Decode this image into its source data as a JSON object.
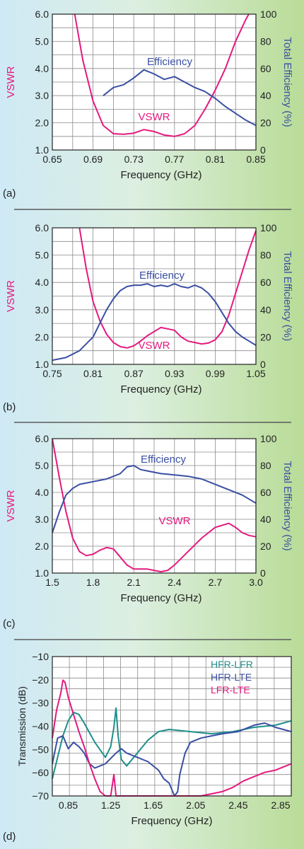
{
  "colors": {
    "vswr": "#e5197e",
    "efficiency": "#3a4fa3",
    "teal": "#1e8f8a",
    "grid": "#8a8a8a",
    "separator": "#5a5a5a"
  },
  "chart_data": [
    {
      "panel": "(a)",
      "type": "line",
      "xlabel": "Frequency (GHz)",
      "ylabel": "VSWR",
      "y2label": "Total Efficiency (%)",
      "xlim": [
        0.65,
        0.85
      ],
      "ylim": [
        1.0,
        6.0
      ],
      "y2lim": [
        0,
        100
      ],
      "xticks": [
        "0.65",
        "0.69",
        "0.73",
        "0.77",
        "0.81",
        "0.85"
      ],
      "yticks": [
        "1.0",
        "2.0",
        "3.0",
        "4.0",
        "5.0",
        "6.0"
      ],
      "y2ticks": [
        "0",
        "20",
        "40",
        "60",
        "80",
        "100"
      ],
      "grid": true,
      "series": [
        {
          "name": "VSWR",
          "axis": "left",
          "color": "#e5197e",
          "x": [
            0.672,
            0.68,
            0.69,
            0.7,
            0.71,
            0.72,
            0.73,
            0.74,
            0.75,
            0.76,
            0.77,
            0.78,
            0.79,
            0.8,
            0.81,
            0.82,
            0.83,
            0.84,
            0.843
          ],
          "y": [
            6.0,
            4.3,
            2.8,
            1.9,
            1.6,
            1.58,
            1.62,
            1.75,
            1.68,
            1.55,
            1.5,
            1.6,
            1.9,
            2.5,
            3.2,
            4.0,
            5.0,
            5.8,
            6.0
          ]
        },
        {
          "name": "Efficiency",
          "axis": "right",
          "color": "#3a4fa3",
          "x": [
            0.7,
            0.71,
            0.72,
            0.73,
            0.74,
            0.75,
            0.76,
            0.77,
            0.78,
            0.79,
            0.8,
            0.81,
            0.82,
            0.83,
            0.84,
            0.85
          ],
          "y": [
            40,
            46,
            48,
            53,
            59,
            56,
            52,
            54,
            50,
            46,
            43,
            38,
            32,
            27,
            22,
            18
          ]
        }
      ]
    },
    {
      "panel": "(b)",
      "type": "line",
      "xlabel": "Frequency (GHz)",
      "ylabel": "VSWR",
      "y2label": "Total Efficiency (%)",
      "xlim": [
        0.75,
        1.05
      ],
      "ylim": [
        1.0,
        6.0
      ],
      "y2lim": [
        0,
        100
      ],
      "xticks": [
        "0.75",
        "0.81",
        "0.87",
        "0.93",
        "0.99",
        "1.05"
      ],
      "yticks": [
        "1.0",
        "2.0",
        "3.0",
        "4.0",
        "5.0",
        "6.0"
      ],
      "y2ticks": [
        "0",
        "20",
        "40",
        "60",
        "80",
        "100"
      ],
      "grid": true,
      "series": [
        {
          "name": "VSWR",
          "axis": "left",
          "color": "#e5197e",
          "x": [
            0.79,
            0.8,
            0.81,
            0.82,
            0.83,
            0.84,
            0.85,
            0.86,
            0.87,
            0.88,
            0.89,
            0.9,
            0.91,
            0.92,
            0.93,
            0.94,
            0.95,
            0.96,
            0.97,
            0.98,
            0.99,
            1.0,
            1.01,
            1.02,
            1.03,
            1.04,
            1.05
          ],
          "y": [
            6.0,
            4.5,
            3.3,
            2.6,
            2.1,
            1.8,
            1.65,
            1.6,
            1.68,
            1.85,
            2.05,
            2.2,
            2.35,
            2.3,
            2.25,
            2.0,
            1.85,
            1.8,
            1.75,
            1.78,
            1.9,
            2.2,
            2.8,
            3.6,
            4.4,
            5.2,
            5.9
          ]
        },
        {
          "name": "Efficiency",
          "axis": "right",
          "color": "#3a4fa3",
          "x": [
            0.75,
            0.77,
            0.79,
            0.81,
            0.82,
            0.83,
            0.84,
            0.85,
            0.86,
            0.87,
            0.88,
            0.89,
            0.9,
            0.91,
            0.92,
            0.93,
            0.94,
            0.95,
            0.96,
            0.97,
            0.98,
            0.99,
            1.0,
            1.01,
            1.02,
            1.03,
            1.04,
            1.05
          ],
          "y": [
            3,
            5,
            10,
            20,
            30,
            40,
            48,
            54,
            57,
            58,
            58,
            59,
            57,
            58,
            57,
            59,
            57,
            56,
            58,
            56,
            52,
            46,
            38,
            30,
            24,
            20,
            17,
            14
          ]
        }
      ]
    },
    {
      "panel": "(c)",
      "type": "line",
      "xlabel": "Frequency (GHz)",
      "ylabel": "VSWR",
      "y2label": "Total Efficiency (%)",
      "xlim": [
        1.5,
        3.0
      ],
      "ylim": [
        1.0,
        6.0
      ],
      "y2lim": [
        0,
        100
      ],
      "xticks": [
        "1.5",
        "1.8",
        "2.1",
        "2.4",
        "2.7",
        "3.0"
      ],
      "yticks": [
        "1.0",
        "2.0",
        "3.0",
        "4.0",
        "5.0",
        "6.0"
      ],
      "y2ticks": [
        "0",
        "20",
        "40",
        "60",
        "80",
        "100"
      ],
      "grid": true,
      "series": [
        {
          "name": "VSWR",
          "axis": "left",
          "color": "#e5197e",
          "x": [
            1.5,
            1.55,
            1.6,
            1.65,
            1.7,
            1.75,
            1.8,
            1.85,
            1.9,
            1.95,
            2.0,
            2.05,
            2.1,
            2.2,
            2.3,
            2.35,
            2.4,
            2.5,
            2.6,
            2.7,
            2.8,
            2.85,
            2.9,
            2.95,
            3.0
          ],
          "y": [
            6.0,
            4.6,
            3.3,
            2.3,
            1.8,
            1.65,
            1.7,
            1.85,
            1.95,
            1.9,
            1.6,
            1.3,
            1.15,
            1.15,
            1.05,
            1.1,
            1.3,
            1.8,
            2.3,
            2.7,
            2.85,
            2.7,
            2.5,
            2.4,
            2.35
          ]
        },
        {
          "name": "Efficiency",
          "axis": "right",
          "color": "#3a4fa3",
          "x": [
            1.5,
            1.55,
            1.6,
            1.65,
            1.7,
            1.8,
            1.9,
            2.0,
            2.05,
            2.1,
            2.15,
            2.2,
            2.3,
            2.4,
            2.5,
            2.6,
            2.7,
            2.8,
            2.9,
            3.0
          ],
          "y": [
            30,
            45,
            58,
            63,
            66,
            68,
            70,
            74,
            79,
            80,
            77,
            76,
            74,
            73,
            72,
            70,
            66,
            62,
            58,
            52
          ]
        }
      ]
    },
    {
      "panel": "(d)",
      "type": "line",
      "xlabel": "Frequency (GHz)",
      "ylabel": "Transmission (dB)",
      "xlim": [
        0.7,
        2.95
      ],
      "ylim": [
        -70,
        -5
      ],
      "xticks": [
        "0.85",
        "1.25",
        "1.65",
        "2.05",
        "2.45",
        "2.85"
      ],
      "yticks": [
        "−70",
        "−60",
        "−50",
        "−40",
        "−30",
        "−20",
        "−10"
      ],
      "grid": true,
      "legend_position": "top-right",
      "series": [
        {
          "name": "HFR-LFR",
          "color": "#1e8f8a",
          "x": [
            0.7,
            0.75,
            0.8,
            0.85,
            0.9,
            0.95,
            1.0,
            1.1,
            1.2,
            1.25,
            1.28,
            1.3,
            1.32,
            1.35,
            1.4,
            1.5,
            1.6,
            1.7,
            1.8,
            2.0,
            2.2,
            2.4,
            2.6,
            2.8,
            2.95
          ],
          "y": [
            -62,
            -52,
            -42,
            -35,
            -31,
            -32,
            -36,
            -45,
            -52,
            -47,
            -38,
            -29,
            -42,
            -53,
            -56,
            -50,
            -44,
            -40,
            -39,
            -40,
            -41,
            -40,
            -38,
            -37,
            -35
          ]
        },
        {
          "name": "HFR-LTE",
          "color": "#3a4fa3",
          "x": [
            0.7,
            0.75,
            0.8,
            0.85,
            0.9,
            0.95,
            1.0,
            1.05,
            1.1,
            1.2,
            1.3,
            1.35,
            1.4,
            1.5,
            1.6,
            1.7,
            1.75,
            1.8,
            1.85,
            1.88,
            1.9,
            1.95,
            2.0,
            2.1,
            2.2,
            2.3,
            2.45,
            2.6,
            2.7,
            2.8,
            2.95
          ],
          "y": [
            -55,
            -43,
            -42,
            -48,
            -45,
            -47,
            -50,
            -55,
            -57,
            -55,
            -50,
            -48,
            -50,
            -52,
            -54,
            -58,
            -62,
            -64,
            -70,
            -68,
            -60,
            -50,
            -45,
            -43,
            -42,
            -41,
            -40,
            -37,
            -36,
            -38,
            -40
          ]
        },
        {
          "name": "LFR-LTE",
          "color": "#e5197e",
          "x": [
            0.7,
            0.74,
            0.78,
            0.8,
            0.82,
            0.85,
            0.9,
            0.95,
            1.0,
            1.05,
            1.1,
            1.15,
            1.2,
            1.25,
            1.28,
            1.3,
            1.32,
            1.35,
            2.0,
            2.1,
            2.2,
            2.3,
            2.4,
            2.5,
            2.6,
            2.7,
            2.8,
            2.9,
            2.95
          ],
          "y": [
            -43,
            -30,
            -22,
            -16,
            -17,
            -24,
            -32,
            -40,
            -47,
            -55,
            -62,
            -68,
            -70,
            -70,
            -60,
            -70,
            -70,
            -70,
            -70,
            -70,
            -69,
            -68,
            -66,
            -63,
            -61,
            -59,
            -58,
            -56,
            -55
          ]
        }
      ]
    }
  ],
  "panel_labels": [
    "(a)",
    "(b)",
    "(c)",
    "(d)"
  ],
  "annotations": {
    "efficiency": "Efficiency",
    "vswr": "VSWR"
  }
}
